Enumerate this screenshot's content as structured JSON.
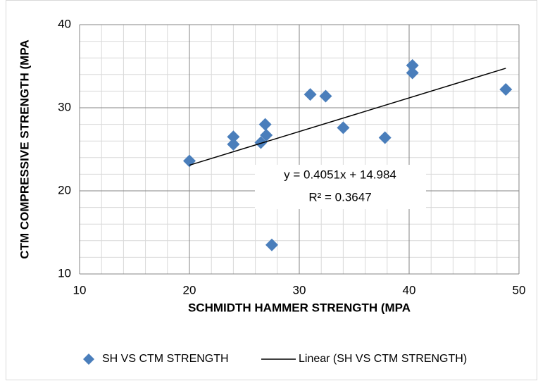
{
  "chart_data": {
    "type": "scatter",
    "x_label": "SCHMIDTH HAMMER STRENGTH (MPA",
    "y_label": "CTM COMPRESSIVE STRENGTH (MPA",
    "series": [
      {
        "name": "SH VS CTM STRENGTH",
        "color": "#4a7ebb",
        "x": [
          20.0,
          24.0,
          24.0,
          26.5,
          26.9,
          27.0,
          27.5,
          31.0,
          32.4,
          34.0,
          37.8,
          40.3,
          40.3,
          48.8
        ],
        "values": [
          23.6,
          26.5,
          25.6,
          25.8,
          28.0,
          26.7,
          13.5,
          31.6,
          31.4,
          27.6,
          26.4,
          35.1,
          34.2,
          32.2
        ]
      }
    ],
    "trendline": {
      "name": "Linear (SH VS CTM STRENGTH)",
      "color": "#000000",
      "slope": 0.4051,
      "intercept": 14.984,
      "equation": "y = 0.4051x + 14.984",
      "r_squared": "R² = 0.3647"
    },
    "xlim": [
      10,
      50
    ],
    "xticks": [
      10,
      20,
      30,
      40,
      50
    ],
    "ylim": [
      10,
      40
    ],
    "yticks": [
      10,
      20,
      30,
      40
    ],
    "grid": true,
    "minor_grid": true,
    "legend": "bottom"
  }
}
